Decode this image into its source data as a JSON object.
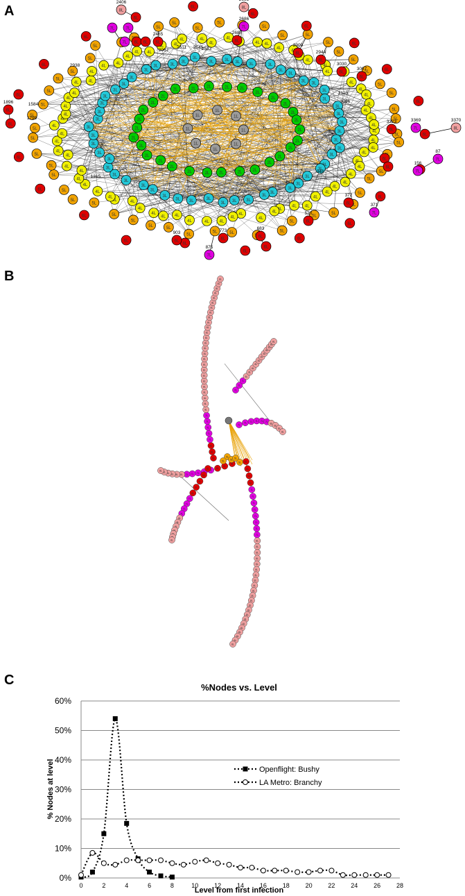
{
  "panels": {
    "a": {
      "label": "A"
    },
    "b": {
      "label": "B"
    },
    "c": {
      "label": "C"
    }
  },
  "colors": {
    "level_1": "#9a9a9a",
    "level_2": "#00cc00",
    "level_3": "#22c8d8",
    "level_4": "#f0f000",
    "level_5": "#f2a400",
    "level_6": "#e00000",
    "level_7": "#e000e0",
    "level_8": "#f0a0a0",
    "edge_dark": "#000000",
    "edge_orange": "#e8a000"
  },
  "network_a": {
    "node_labels": [
      "1L",
      "2L",
      "3L",
      "4L",
      "5L",
      "6L",
      "7L",
      "8L"
    ],
    "id_labels": [
      "2406",
      "2693",
      "2686",
      "2465",
      "2687",
      "2511",
      "2545",
      "2533",
      "2909",
      "2944",
      "3030",
      "3067",
      "1896",
      "3323",
      "3369",
      "3370",
      "87",
      "156",
      "371",
      "372",
      "520",
      "773",
      "683",
      "903",
      "875",
      "348",
      "1315",
      "1584",
      "1799",
      "3123",
      "2938",
      "3066",
      "2067"
    ]
  },
  "network_b": {
    "node_labels": [
      "5L",
      "6L",
      "7L",
      "8L"
    ]
  },
  "chart_data": {
    "type": "line",
    "title": "%Nodes vs. Level",
    "xlabel": "Level from first infection",
    "ylabel": "% Nodes at level",
    "xlim": [
      0,
      28
    ],
    "ylim": [
      0,
      60
    ],
    "x_ticks": [
      "0",
      "2",
      "4",
      "6",
      "8",
      "10",
      "12",
      "14",
      "16",
      "18",
      "20",
      "22",
      "24",
      "26",
      "28"
    ],
    "y_ticks": [
      "0%",
      "10%",
      "20%",
      "30%",
      "40%",
      "50%",
      "60%"
    ],
    "grid": true,
    "legend_position": "center-right",
    "series": [
      {
        "name": "Openflight: Bushy",
        "marker": "filled-square",
        "x": [
          0,
          1,
          2,
          3,
          4,
          5,
          6,
          7,
          8
        ],
        "y": [
          0.3,
          2,
          15,
          54,
          18.5,
          6.5,
          2,
          0.7,
          0.3
        ]
      },
      {
        "name": "LA Metro: Branchy",
        "marker": "open-circle",
        "x": [
          0,
          1,
          2,
          3,
          4,
          5,
          6,
          7,
          8,
          9,
          10,
          11,
          12,
          13,
          14,
          15,
          16,
          17,
          18,
          19,
          20,
          21,
          22,
          23,
          24,
          25,
          26,
          27
        ],
        "y": [
          1,
          8.5,
          5,
          4.5,
          6,
          6,
          6,
          6,
          5,
          4.5,
          5.5,
          6,
          5,
          4.5,
          3.5,
          3.5,
          2.5,
          2.5,
          2.5,
          2,
          2,
          2.5,
          2.5,
          1,
          1,
          1,
          1,
          1
        ]
      }
    ]
  }
}
